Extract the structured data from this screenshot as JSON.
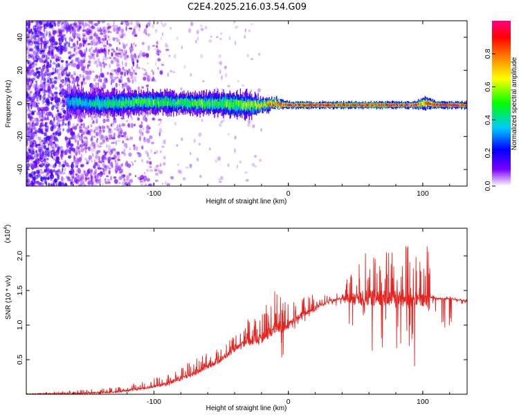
{
  "title": "C2E4.2025.216.03.54.G09",
  "chart_data": [
    {
      "type": "heatmap",
      "xlabel": "Height of straight line (km)",
      "ylabel": "Frequency (Hz)",
      "xlim": [
        -195,
        133
      ],
      "ylim": [
        -50,
        50
      ],
      "x_ticks": [
        -100,
        0,
        100
      ],
      "x_tick_labels": [
        "-100",
        "0",
        "100"
      ],
      "y_ticks": [
        -40,
        -20,
        0,
        20,
        40
      ],
      "y_tick_labels": [
        "-40",
        "-20",
        "0",
        "20",
        "40"
      ],
      "colorbar": {
        "label": "Normalized spectral amplitude",
        "range": [
          0,
          1
        ],
        "ticks": [
          0,
          0.2,
          0.4,
          0.6,
          0.8
        ],
        "tick_labels": [
          "0.0",
          "0.2",
          "0.4",
          "0.6",
          "0.8"
        ],
        "colors": [
          "#ffffff",
          "#7a00ff",
          "#0000ff",
          "#00c8ff",
          "#00ff00",
          "#ffff00",
          "#ff8000",
          "#ff0000",
          "#ff0080"
        ]
      },
      "line_profile": {
        "x": [
          -160,
          -150,
          -130,
          -110,
          -90,
          -70,
          -50,
          -30,
          -20,
          -10,
          0,
          20,
          40,
          60,
          80,
          95,
          100,
          105,
          110,
          133
        ],
        "center_hz": [
          1,
          0.5,
          0,
          1,
          0.5,
          0,
          0,
          -1,
          -1,
          0,
          -1,
          -1,
          -1,
          -1,
          -1,
          -1,
          0,
          0,
          -1,
          -1
        ],
        "width_hz": [
          8,
          7,
          7,
          6,
          6,
          6,
          7,
          7,
          4,
          3,
          2,
          2,
          2,
          2,
          2,
          2,
          4,
          3,
          2,
          2
        ],
        "amplitude": [
          0.35,
          0.4,
          0.45,
          0.5,
          0.5,
          0.5,
          0.5,
          0.55,
          0.7,
          0.85,
          0.9,
          0.9,
          0.9,
          0.9,
          0.9,
          0.9,
          0.7,
          0.85,
          0.95,
          0.95
        ]
      }
    },
    {
      "type": "line",
      "xlabel": "Height of straight line (km)",
      "ylabel": "SNR (10 * v/v)",
      "y_multiplier": "(x10^4)",
      "xlim": [
        -195,
        133
      ],
      "ylim": [
        0,
        24000
      ],
      "x_ticks": [
        -100,
        0,
        100
      ],
      "x_tick_labels": [
        "-100",
        "0",
        "100"
      ],
      "y_ticks": [
        5000,
        10000,
        15000,
        20000
      ],
      "y_tick_labels": [
        "0.5",
        "1.0",
        "1.5",
        "2.0"
      ],
      "line_color": "#e8231f",
      "envelope": {
        "x": [
          -195,
          -160,
          -130,
          -110,
          -90,
          -70,
          -60,
          -50,
          -40,
          -30,
          -20,
          -10,
          0,
          10,
          20,
          30,
          40,
          45,
          50,
          55,
          60,
          70,
          80,
          90,
          95,
          100,
          103,
          105,
          106,
          108,
          110,
          120,
          125,
          133
        ],
        "base": [
          0,
          100,
          300,
          800,
          1500,
          3000,
          4000,
          5000,
          6500,
          7500,
          8000,
          9500,
          10000,
          11500,
          12500,
          13500,
          13800,
          13800,
          13800,
          13900,
          14000,
          14000,
          13800,
          13700,
          13600,
          13500,
          13600,
          13600,
          14000,
          14000,
          13800,
          13800,
          13700,
          13500
        ],
        "spike": [
          0,
          600,
          1000,
          1800,
          3000,
          5000,
          6000,
          7000,
          8500,
          11000,
          12000,
          15000,
          13000,
          14000,
          15000,
          15000,
          14500,
          18000,
          19000,
          20000,
          21000,
          20500,
          21500,
          22000,
          20000,
          19000,
          24000,
          22000,
          15000,
          14500,
          14000,
          14200,
          14000,
          13800
        ],
        "dip": [
          0,
          0,
          0,
          0,
          0,
          0,
          0,
          0,
          0,
          0,
          0,
          0,
          8000,
          10000,
          12000,
          12500,
          12500,
          4500,
          4500,
          12000,
          6000,
          5000,
          6500,
          6000,
          3000,
          5000,
          1500,
          12000,
          13000,
          13000,
          9500,
          9000,
          13000,
          13000
        ]
      }
    }
  ]
}
